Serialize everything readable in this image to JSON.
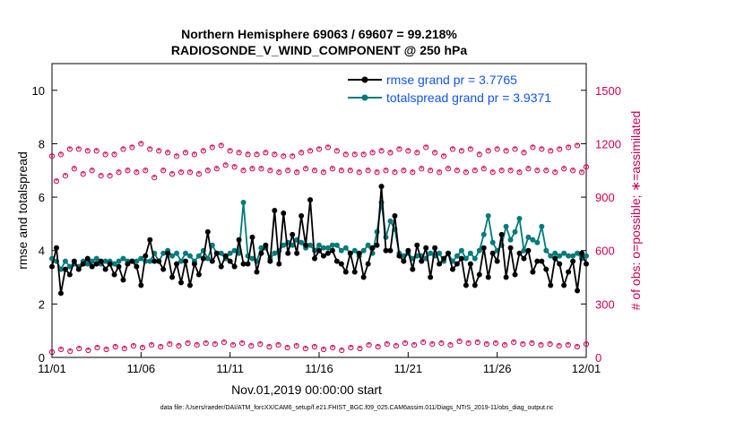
{
  "chart_data": {
    "type": "line",
    "title": "Northern Hemisphere 69063 / 69607 = 99.218%",
    "subtitle": "RADIOSONDE_V_WIND_COMPONENT @ 250 hPa",
    "xlabel": "Nov.01,2019 00:00:00 start",
    "ylabel": "rmse and totalspread",
    "y2label": "# of obs: o=possible; ∗=assimilated",
    "footnote": "data file: /Users/raeder/DAI/ATM_forcXX/CAM6_setup/f.e21.FHIST_BGC.f09_025.CAM6assim.011/Diags_NTrS_2019-11/obs_diag_output.nc",
    "x_tick_labels": [
      "11/01",
      "11/06",
      "11/11",
      "11/16",
      "11/21",
      "11/26",
      "12/01"
    ],
    "xlim_days": [
      0,
      30
    ],
    "ylim": [
      0,
      11
    ],
    "y_ticks": [
      0,
      2,
      4,
      6,
      8,
      10
    ],
    "y2lim": [
      0,
      1650
    ],
    "y2_ticks": [
      0,
      300,
      600,
      900,
      1200,
      1500
    ],
    "colors": {
      "rmse": "#000000",
      "spread": "#007b7b",
      "obs": "#cc0055",
      "legend_text": "#1155ee"
    },
    "series": [
      {
        "name": "rmse grand pr = 3.7765",
        "values": [
          3.4,
          4.1,
          2.4,
          3.3,
          3.1,
          3.6,
          3.3,
          3.5,
          3.7,
          3.4,
          3.5,
          3.6,
          3.3,
          3.5,
          3.1,
          3.4,
          2.9,
          3.5,
          3.6,
          3.4,
          2.7,
          3.8,
          4.4,
          3.6,
          3.6,
          3.3,
          3.9,
          3.0,
          3.5,
          2.8,
          3.6,
          2.7,
          3.5,
          3.1,
          3.7,
          4.7,
          3.6,
          3.9,
          3.4,
          3.8,
          3.6,
          3.4,
          4.4,
          3.5,
          3.5,
          4.5,
          3.2,
          3.9,
          4.2,
          3.6,
          5.5,
          3.5,
          5.4,
          3.9,
          4.6,
          3.9,
          5.3,
          4.2,
          5.9,
          3.7,
          4.0,
          3.8,
          3.9,
          4.0,
          3.6,
          3.5,
          3.2,
          3.9,
          3.2,
          3.9,
          3.0,
          3.5,
          4.1,
          4.2,
          6.4,
          4.0,
          4.0,
          5.3,
          3.8,
          3.6,
          4.0,
          3.3,
          4.2,
          3.6,
          4.1,
          3.0,
          4.1,
          3.5,
          3.7,
          3.9,
          3.3,
          3.5,
          3.7,
          2.7,
          3.5,
          2.7,
          3.1,
          4.1,
          3.0,
          3.9,
          3.6,
          4.6,
          3.0,
          4.1,
          3.1,
          3.9,
          3.7,
          4.0,
          3.2,
          3.6,
          3.6,
          3.3,
          2.7,
          3.7,
          3.5,
          2.7,
          3.2,
          3.6,
          2.5,
          3.9,
          3.5
        ]
      },
      {
        "name": "totalspread grand pr = 3.9371",
        "values": [
          3.7,
          3.6,
          3.3,
          3.6,
          3.4,
          3.5,
          3.4,
          3.6,
          3.5,
          3.6,
          3.7,
          3.5,
          3.6,
          3.6,
          3.5,
          3.6,
          3.7,
          3.6,
          3.6,
          3.6,
          3.7,
          3.6,
          3.6,
          3.9,
          3.6,
          3.9,
          4.0,
          3.8,
          3.9,
          3.6,
          3.9,
          3.8,
          3.6,
          3.8,
          4.0,
          3.7,
          4.2,
          3.9,
          3.9,
          3.7,
          3.9,
          4.0,
          3.9,
          5.8,
          3.8,
          3.7,
          3.6,
          4.1,
          4.1,
          3.7,
          3.9,
          4.0,
          4.2,
          4.3,
          4.2,
          4.4,
          4.3,
          4.1,
          4.2,
          4.0,
          4.2,
          4.1,
          4.1,
          4.2,
          4.2,
          4.0,
          4.1,
          3.9,
          4.0,
          3.8,
          4.0,
          4.2,
          3.9,
          4.7,
          5.8,
          4.5,
          5.1,
          4.8,
          3.9,
          3.8,
          3.9,
          3.7,
          3.8,
          3.8,
          3.7,
          3.9,
          3.8,
          3.9,
          3.6,
          3.9,
          3.6,
          3.8,
          4.0,
          3.7,
          3.9,
          3.7,
          4.0,
          4.6,
          5.3,
          4.3,
          4.0,
          4.2,
          4.9,
          4.4,
          4.7,
          5.2,
          4.0,
          4.5,
          4.4,
          4.3,
          4.9,
          4.0,
          3.8,
          3.9,
          3.8,
          3.9,
          3.8,
          3.8,
          3.9,
          3.7,
          3.8
        ]
      }
    ],
    "obs_possible": {
      "name": "o=possible",
      "values": [
        1130,
        990,
        1140,
        1020,
        1170,
        1060,
        1170,
        1030,
        1160,
        1050,
        1160,
        1020,
        1140,
        1020,
        1140,
        1040,
        1170,
        1050,
        1180,
        1040,
        1200,
        1050,
        1170,
        1010,
        1160,
        1050,
        1150,
        1030,
        1130,
        1040,
        1150,
        1040,
        1140,
        1030,
        1160,
        1050,
        1180,
        1060,
        1190,
        1080,
        1160,
        1070,
        1150,
        1050,
        1140,
        1060,
        1140,
        1060,
        1150,
        1050,
        1140,
        1040,
        1130,
        1050,
        1130,
        1040,
        1150,
        1060,
        1160,
        1050,
        1170,
        1040,
        1180,
        1060,
        1160,
        1050,
        1140,
        1050,
        1140,
        1040,
        1140,
        1050,
        1150,
        1040,
        1160,
        1050,
        1150,
        1040,
        1170,
        1050,
        1160,
        1040,
        1150,
        1060,
        1180,
        1050,
        1150,
        1040,
        1130,
        1060,
        1170,
        1050,
        1160,
        1040,
        1170,
        1050,
        1140,
        1060,
        1160,
        1040,
        1170,
        1050,
        1160,
        1050,
        1170,
        1040,
        1150,
        1060,
        1180,
        1050,
        1170,
        1050,
        1160,
        1040,
        1170,
        1060,
        1180,
        1050,
        1190,
        1040,
        1070
      ],
      "dx": [
        0,
        1.0,
        2.0,
        3.0,
        4.0,
        5.0,
        6.0,
        7.0,
        8.0,
        9.0,
        10.0,
        11.0,
        12.0,
        13.0,
        14.0,
        15.0,
        16.0,
        17.0,
        18.0,
        19.0,
        20.0,
        21.0,
        22.0,
        23.0,
        24.0,
        25.0,
        26.0,
        27.0,
        28.0,
        29.0,
        30.0,
        31.0,
        32.0,
        33.0,
        34.0,
        35.0,
        36.0,
        37.0,
        38.0,
        39.0,
        40.0,
        41.0,
        42.0,
        43.0,
        44.0,
        45.0,
        46.0,
        47.0,
        48.0,
        49.0,
        50.0,
        51.0,
        52.0,
        53.0,
        54.0,
        55.0,
        56.0,
        57.0,
        58.0,
        59.0
      ]
    },
    "obs_assimilated": {
      "name": "∗=assimilated",
      "values_low": [
        30,
        45,
        35,
        50,
        40,
        55,
        45,
        60,
        50,
        65,
        55,
        70,
        60,
        75,
        65,
        80,
        70,
        80,
        75,
        85,
        70,
        80,
        65,
        75,
        60,
        70,
        55,
        65,
        50,
        60,
        45,
        55,
        40,
        55,
        50,
        70,
        60,
        75,
        65,
        80,
        70,
        85,
        75,
        80,
        70,
        90,
        80,
        85,
        75,
        80,
        70,
        85,
        75,
        80,
        70,
        75,
        65,
        70,
        60,
        75
      ]
    }
  }
}
